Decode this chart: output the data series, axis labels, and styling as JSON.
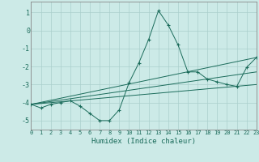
{
  "xlabel": "Humidex (Indice chaleur)",
  "background_color": "#cceae7",
  "line_color": "#1a6b5a",
  "grid_color": "#aacfcc",
  "spine_color": "#888888",
  "main_line": {
    "x": [
      0,
      1,
      2,
      3,
      4,
      5,
      6,
      7,
      8,
      9,
      10,
      11,
      12,
      13,
      14,
      15,
      16,
      17,
      18,
      19,
      20,
      21,
      22,
      23
    ],
    "y": [
      -4.1,
      -4.3,
      -4.1,
      -4.0,
      -3.9,
      -4.2,
      -4.6,
      -5.0,
      -5.0,
      -4.4,
      -2.9,
      -1.8,
      -0.5,
      1.1,
      0.3,
      -0.8,
      -2.3,
      -2.3,
      -2.7,
      -2.85,
      -3.0,
      -3.1,
      -2.05,
      -1.5
    ]
  },
  "straight_lines": [
    {
      "x": [
        0,
        23
      ],
      "y": [
        -4.1,
        -1.5
      ]
    },
    {
      "x": [
        0,
        23
      ],
      "y": [
        -4.1,
        -2.3
      ]
    },
    {
      "x": [
        0,
        23
      ],
      "y": [
        -4.1,
        -3.0
      ]
    }
  ],
  "xlim": [
    0,
    23
  ],
  "ylim": [
    -5.5,
    1.6
  ],
  "yticks": [
    1,
    0,
    -1,
    -2,
    -3,
    -4,
    -5
  ],
  "xticks": [
    0,
    1,
    2,
    3,
    4,
    5,
    6,
    7,
    8,
    9,
    10,
    11,
    12,
    13,
    14,
    15,
    16,
    17,
    18,
    19,
    20,
    21,
    22,
    23
  ]
}
